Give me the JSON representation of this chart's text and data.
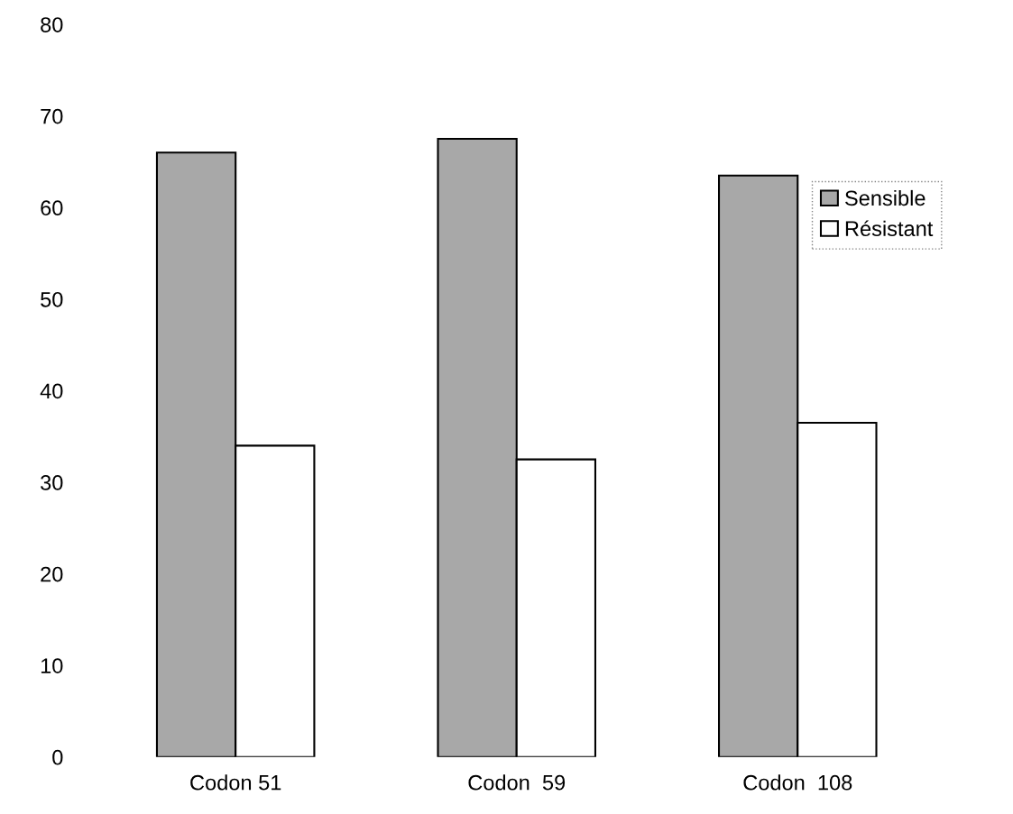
{
  "chart_data": {
    "type": "bar",
    "categories": [
      "Codon 51",
      "Codon  59",
      "Codon  108"
    ],
    "series": [
      {
        "name": "Sensible",
        "color": "#a8a8a8",
        "values": [
          66,
          67.5,
          63.5
        ]
      },
      {
        "name": "Résistant",
        "color": "#ffffff",
        "values": [
          34,
          32.5,
          36.5
        ]
      }
    ],
    "ylim": [
      0,
      80
    ],
    "yticks": [
      0,
      10,
      20,
      30,
      40,
      50,
      60,
      70,
      80
    ],
    "grid": false,
    "legend": "top right"
  }
}
